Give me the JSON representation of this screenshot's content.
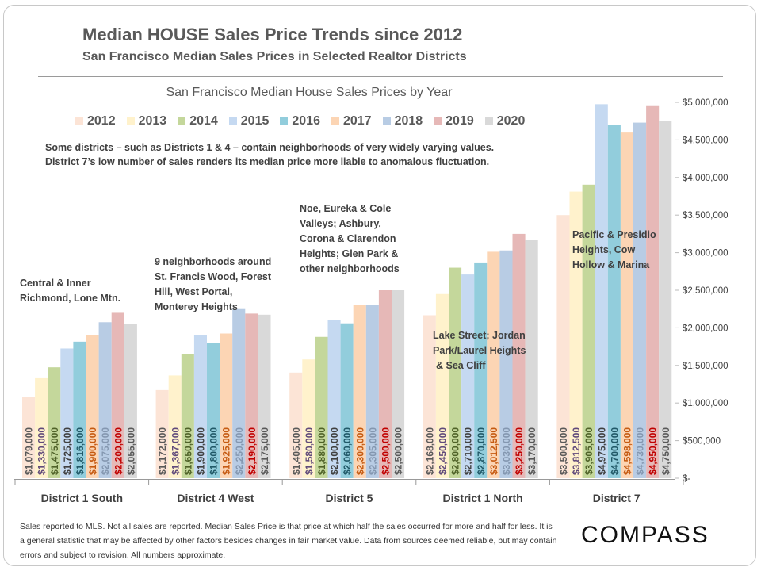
{
  "header": {
    "title": "Median HOUSE Sales Price Trends since 2012",
    "subtitle": "San Francisco Median Sales Prices in Selected Realtor Districts"
  },
  "note": [
    "Some districts – such as Districts 1 & 4 – contain neighborhoods of very widely varying values.",
    "District 7’s low number of sales renders its median price more liable to anomalous fluctuation."
  ],
  "annotations": [
    [
      "Central & Inner",
      "Richmond, Lone Mtn."
    ],
    [
      "9 neighborhoods around",
      "St. Francis Wood, Forest",
      "Hill, West Portal,",
      "Monterey Heights"
    ],
    [
      "Noe, Eureka & Cole",
      "Valleys; Ashbury,",
      "Corona & Clarendon",
      "Heights; Glen Park &",
      "other neighborhoods"
    ],
    [
      "Lake Street; Jordan",
      "Park/Laurel Heights",
      "& Sea Cliff"
    ],
    [
      "Pacific & Presidio",
      "Heights, Cow",
      "Hollow & Marina"
    ]
  ],
  "footer": {
    "text": "Sales reported to MLS. Not all sales are reported. Median Sales Price is that price at which half the sales occurred for more and half for less. It is a general statistic that may be affected by other factors besides changes in fair market value. Data from sources deemed reliable, but may contain errors and subject to revision.  All numbers approximate.",
    "logo": "COMPASS"
  },
  "chart_data": {
    "type": "bar",
    "title": "San Francisco Median House Sales Prices by Year",
    "categories": [
      "District 1 South",
      "District 4 West",
      "District 5",
      "District 1 North",
      "District 7"
    ],
    "ylim": [
      0,
      5000000
    ],
    "yticks": [
      0,
      500000,
      1000000,
      1500000,
      2000000,
      2500000,
      3000000,
      3500000,
      4000000,
      4500000,
      5000000
    ],
    "ytick_labels": [
      "$-",
      "$500,000",
      "$1,000,000",
      "$1,500,000",
      "$2,000,000",
      "$2,500,000",
      "$3,000,000",
      "$3,500,000",
      "$4,000,000",
      "$4,500,000",
      "$5,000,000"
    ],
    "y_axis_side": "right",
    "legend_position": "top",
    "grid": false,
    "series": [
      {
        "name": "2012",
        "color": "#fce4d6",
        "label_color": "#595959",
        "values": [
          1079000,
          1172000,
          1405000,
          2168000,
          3500000
        ],
        "labels": [
          "$1,079,000",
          "$1,172,000",
          "$1,405,000",
          "$2,168,000",
          "$3,500,000"
        ]
      },
      {
        "name": "2013",
        "color": "#fff2cc",
        "label_color": "#604a7b",
        "values": [
          1330000,
          1367000,
          1580000,
          2450000,
          3812500
        ],
        "labels": [
          "$1,330,000",
          "$1,367,000",
          "$1,580,000",
          "$2,450,000",
          "$3,812,500"
        ]
      },
      {
        "name": "2014",
        "color": "#c4d79b",
        "label_color": "#4f6228",
        "values": [
          1475000,
          1650000,
          1880000,
          2800000,
          3905000
        ],
        "labels": [
          "$1,475,000",
          "$1,650,000",
          "$1,880,000",
          "$2,800,000",
          "$3,905,000"
        ]
      },
      {
        "name": "2015",
        "color": "#c5d9f1",
        "label_color": "#404040",
        "values": [
          1725000,
          1900000,
          2100000,
          2710000,
          4975000
        ],
        "labels": [
          "$1,725,000",
          "$1,900,000",
          "$2,100,000",
          "$2,710,000",
          "$4,975,000"
        ]
      },
      {
        "name": "2016",
        "color": "#92cddc",
        "label_color": "#215968",
        "values": [
          1816000,
          1800000,
          2060000,
          2870000,
          4700000
        ],
        "labels": [
          "$1,816,000",
          "$1,800,000",
          "$2,060,000",
          "$2,870,000",
          "$4,700,000"
        ]
      },
      {
        "name": "2017",
        "color": "#fcd5b4",
        "label_color": "#c55a11",
        "values": [
          1900000,
          1925000,
          2300000,
          3012500,
          4598000
        ],
        "labels": [
          "$1,900,000",
          "$1,925,000",
          "$2,300,000",
          "$3,012,500",
          "$4,598,000"
        ]
      },
      {
        "name": "2018",
        "color": "#b8cce4",
        "label_color": "#8497b0",
        "values": [
          2075000,
          2250000,
          2305000,
          3030000,
          4730000
        ],
        "labels": [
          "$2,075,000",
          "$2,250,000",
          "$2,305,000",
          "$3,030,000",
          "$4,730,000"
        ]
      },
      {
        "name": "2019",
        "color": "#e6b8b7",
        "label_color": "#c00000",
        "values": [
          2200000,
          2190000,
          2500000,
          3250000,
          4950000
        ],
        "labels": [
          "$2,200,000",
          "$2,190,000",
          "$2,500,000",
          "$3,250,000",
          "$4,950,000"
        ]
      },
      {
        "name": "2020",
        "color": "#d9d9d9",
        "label_color": "#595959",
        "values": [
          2055000,
          2175000,
          2500000,
          3170000,
          4750000
        ],
        "labels": [
          "$2,055,000",
          "$2,175,000",
          "$2,500,000",
          "$3,170,000",
          "$4,750,000"
        ]
      }
    ]
  }
}
